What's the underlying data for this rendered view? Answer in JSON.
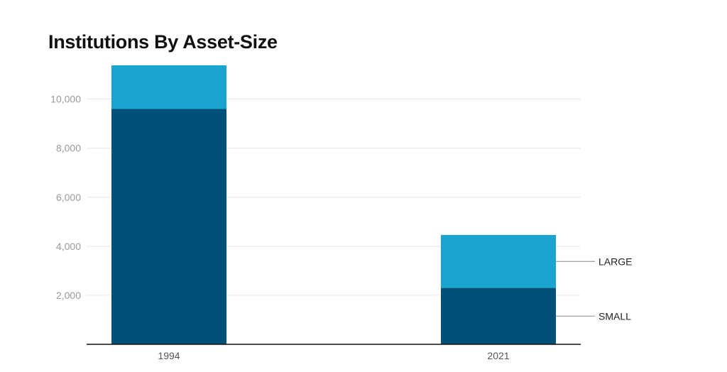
{
  "chart_data": {
    "type": "bar",
    "stacked": true,
    "title": "Institutions By Asset-Size",
    "categories": [
      "1994",
      "2021"
    ],
    "series": [
      {
        "name": "SMALL",
        "values": [
          9600,
          2300
        ],
        "color": "#005078"
      },
      {
        "name": "LARGE",
        "values": [
          1780,
          2160
        ],
        "color": "#1ba4d0"
      }
    ],
    "yticks": [
      2000,
      4000,
      6000,
      8000,
      10000
    ],
    "ytick_labels": [
      "2,000",
      "4,000",
      "6,000",
      "8,000",
      "10,000"
    ],
    "ylim": [
      0,
      11380
    ],
    "xlabel": "",
    "ylabel": "",
    "grid": true,
    "legend": "right, labels attached to 2021 bar segments"
  }
}
